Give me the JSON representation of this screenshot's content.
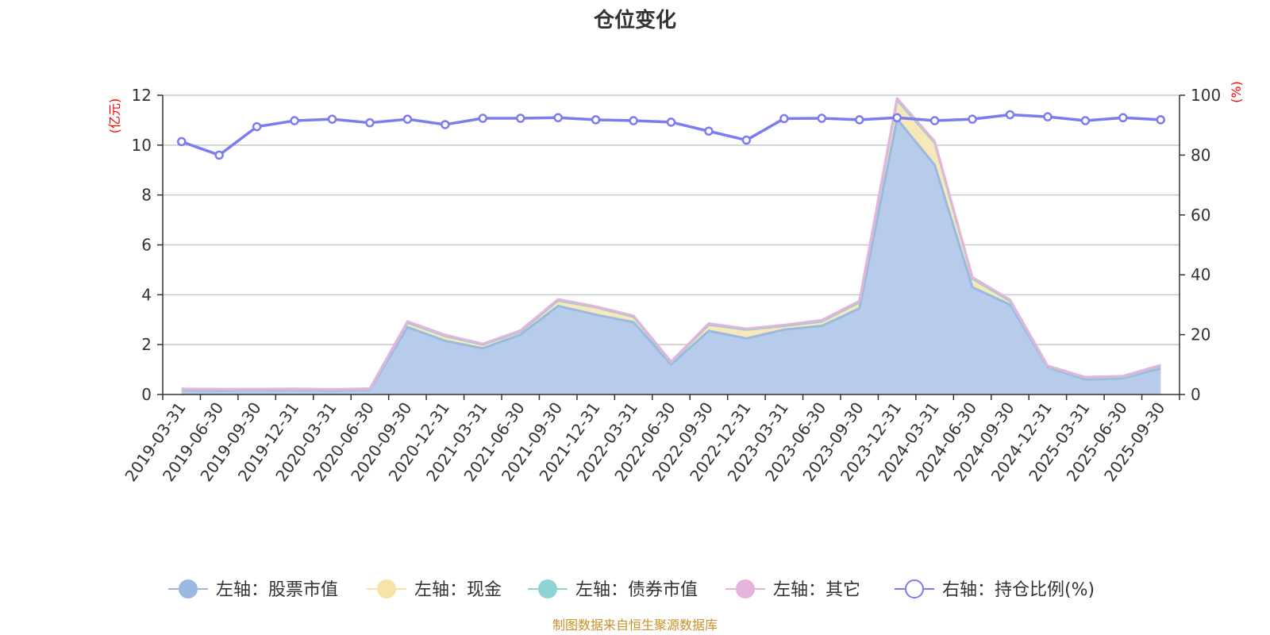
{
  "chart_data": {
    "type": "area",
    "title": "仓位变化",
    "left_axis": {
      "unit": "(亿元)",
      "range": [
        0,
        12
      ],
      "ticks": [
        0,
        2,
        4,
        6,
        8,
        10,
        12
      ]
    },
    "right_axis": {
      "unit": "(%)",
      "range": [
        0,
        100
      ],
      "ticks": [
        0,
        20,
        40,
        60,
        80,
        100
      ]
    },
    "categories": [
      "2019-03-31",
      "2019-06-30",
      "2019-09-30",
      "2019-12-31",
      "2020-03-31",
      "2020-06-30",
      "2020-09-30",
      "2020-12-31",
      "2021-03-31",
      "2021-06-30",
      "2021-09-30",
      "2021-12-31",
      "2022-03-31",
      "2022-06-30",
      "2022-09-30",
      "2022-12-31",
      "2023-03-31",
      "2023-06-30",
      "2023-09-30",
      "2023-12-31",
      "2024-03-31",
      "2024-06-30",
      "2024-09-30",
      "2024-12-31",
      "2025-03-31",
      "2025-06-30",
      "2025-09-30"
    ],
    "series": [
      {
        "name": "左轴：股票市值",
        "axis": "left",
        "color": "#9bb8e0",
        "fill": "#b7cbea",
        "values": [
          0.18,
          0.16,
          0.17,
          0.18,
          0.16,
          0.19,
          2.7,
          2.15,
          1.85,
          2.4,
          3.55,
          3.2,
          2.9,
          1.2,
          2.55,
          2.25,
          2.6,
          2.75,
          3.45,
          11.05,
          9.2,
          4.3,
          3.6,
          1.1,
          0.6,
          0.65,
          1.05
        ]
      },
      {
        "name": "左轴：现金",
        "axis": "left",
        "color": "#f6e3a6",
        "fill": "#f6e8b8",
        "values": [
          0.03,
          0.03,
          0.03,
          0.03,
          0.03,
          0.03,
          0.18,
          0.2,
          0.15,
          0.12,
          0.22,
          0.3,
          0.22,
          0.08,
          0.25,
          0.35,
          0.15,
          0.18,
          0.25,
          0.75,
          0.9,
          0.35,
          0.15,
          0.03,
          0.07,
          0.05,
          0.08
        ]
      },
      {
        "name": "左轴：债券市值",
        "axis": "left",
        "color": "#8fd3d4",
        "fill": "#a9dfe0",
        "values": [
          0,
          0,
          0,
          0,
          0,
          0,
          0,
          0,
          0,
          0,
          0,
          0,
          0,
          0,
          0,
          0,
          0,
          0,
          0,
          0,
          0,
          0,
          0,
          0,
          0,
          0,
          0
        ]
      },
      {
        "name": "左轴：其它",
        "axis": "left",
        "color": "#e6b3dc",
        "fill": "#efcbe8",
        "values": [
          0.02,
          0.03,
          0.02,
          0.02,
          0.02,
          0.02,
          0.05,
          0.04,
          0.03,
          0.05,
          0.05,
          0.03,
          0.04,
          0.04,
          0.05,
          0.04,
          0.04,
          0.05,
          0.05,
          0.08,
          0.05,
          0.05,
          0.05,
          0.02,
          0.03,
          0.04,
          0.05
        ]
      },
      {
        "name": "右轴：持仓比例(%)",
        "axis": "right",
        "color": "#7b7cf0",
        "values": [
          84.5,
          80.0,
          89.5,
          91.5,
          92.0,
          90.8,
          92.0,
          90.2,
          92.3,
          92.3,
          92.5,
          91.8,
          91.5,
          91.0,
          88.0,
          85.0,
          92.2,
          92.3,
          91.8,
          92.5,
          91.5,
          92.0,
          93.5,
          92.8,
          91.5,
          92.5,
          91.8
        ]
      }
    ],
    "legend_position": "bottom"
  },
  "source_text": "制图数据来自恒生聚源数据库"
}
